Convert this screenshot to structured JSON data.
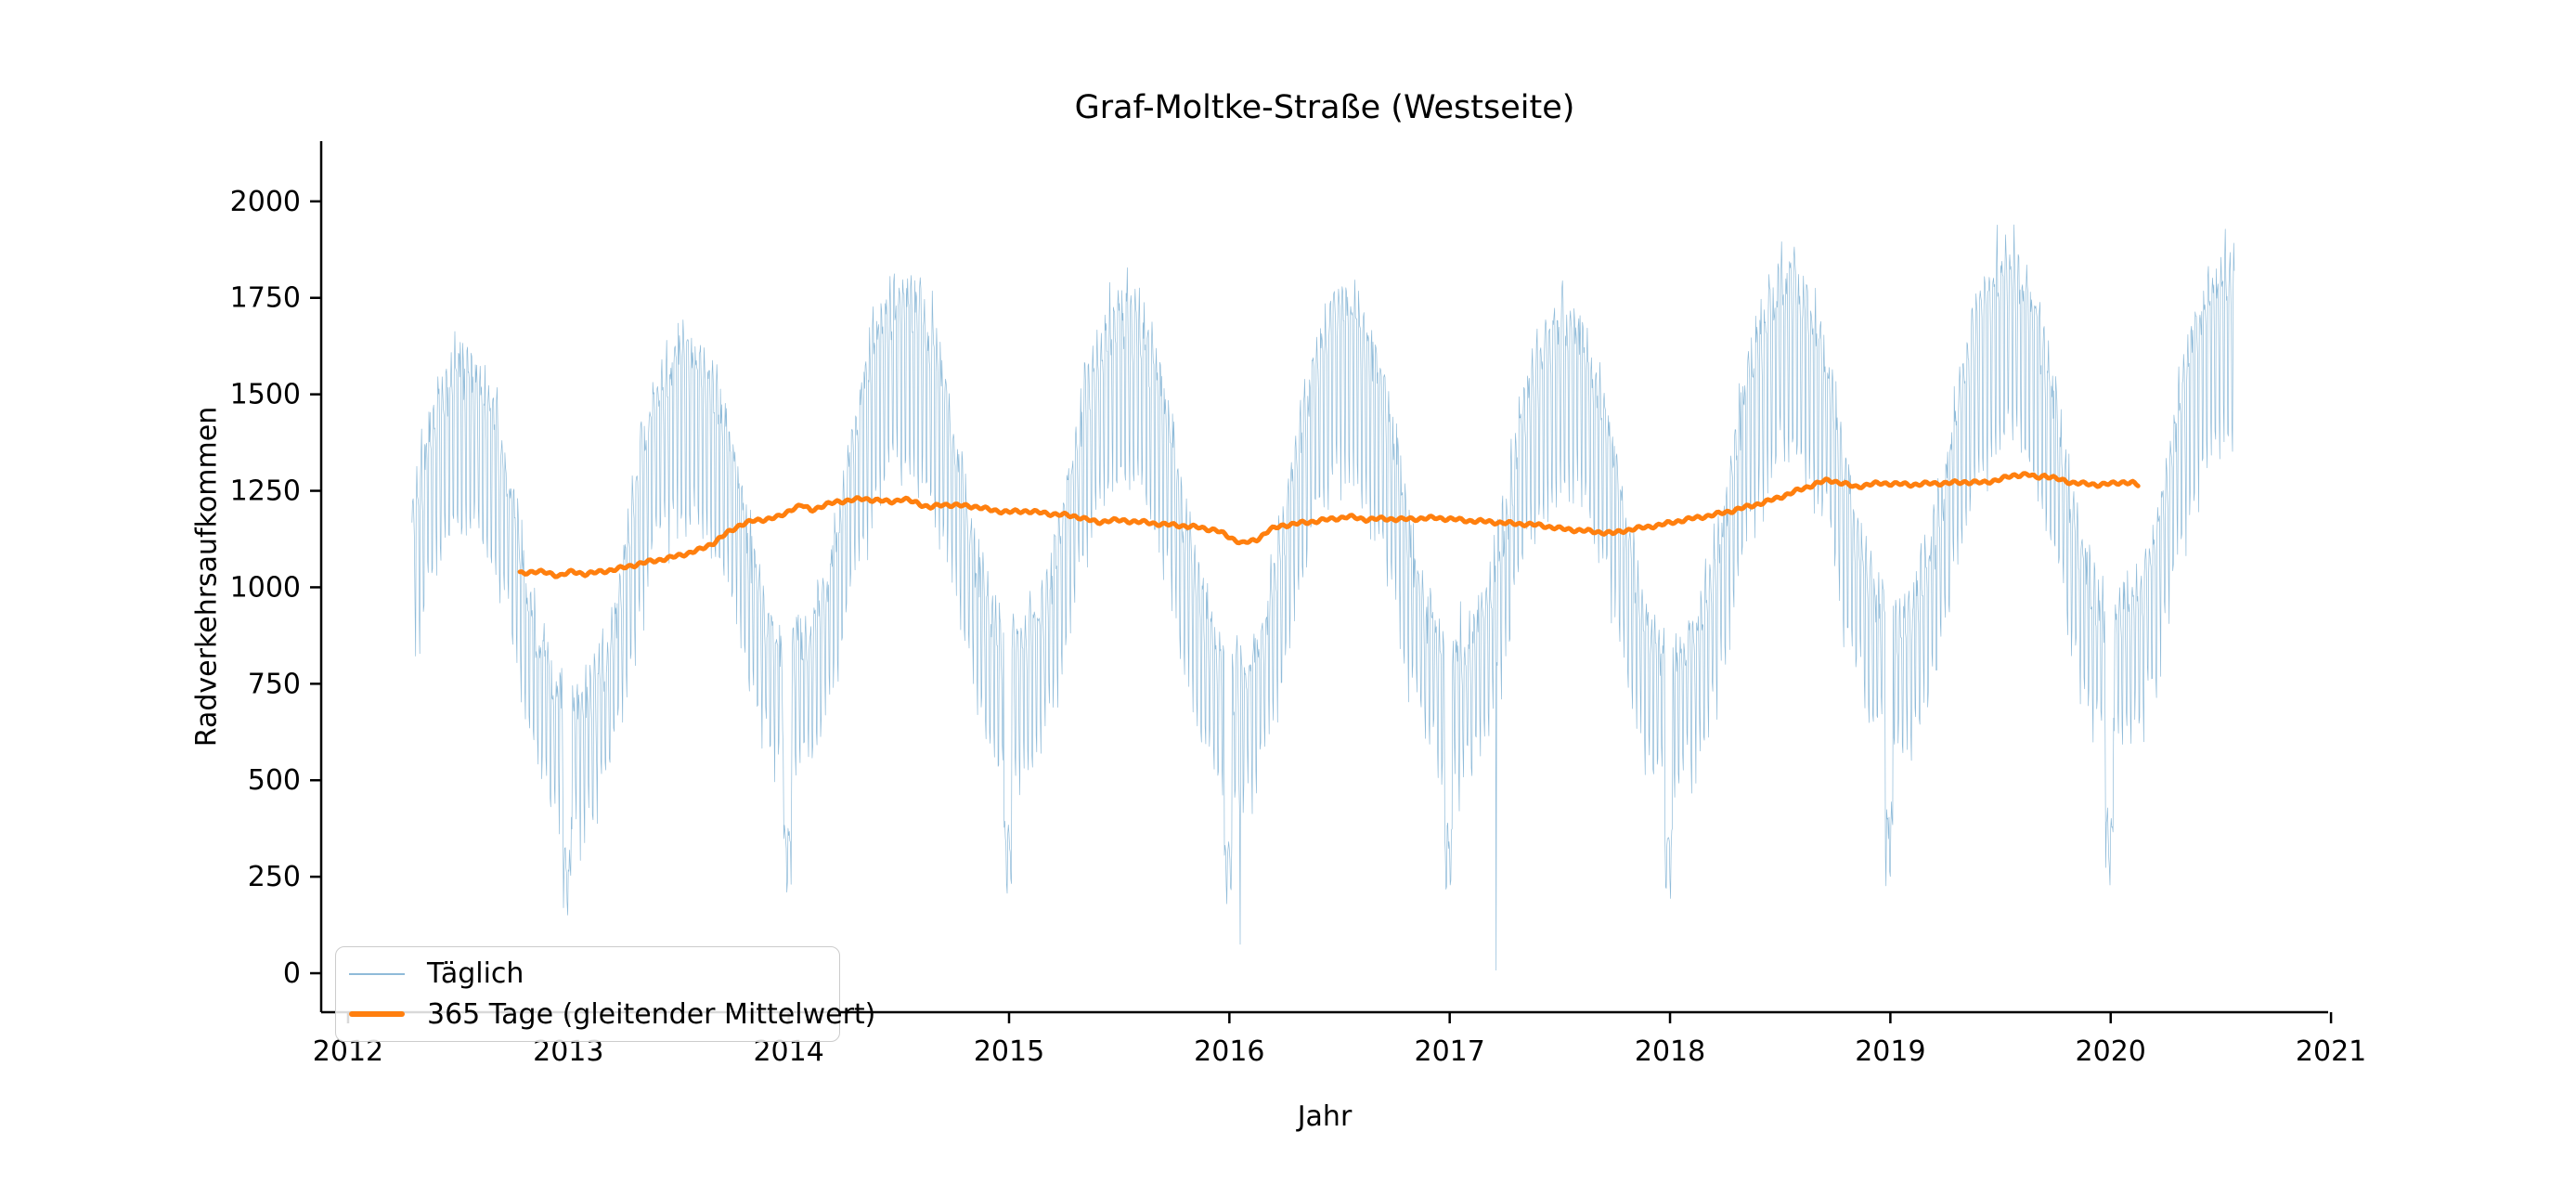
{
  "figure": {
    "title": "Graf-Moltke-Straße (Westseite)"
  },
  "legend": {
    "items": [
      {
        "label": "Täglich",
        "color": "#1f77b4",
        "style": "thin"
      },
      {
        "label": "365 Tage (gleitender Mittelwert)",
        "color": "#ff7f0e",
        "style": "thick"
      }
    ]
  },
  "chart_data": {
    "type": "line",
    "title": "Graf-Moltke-Straße (Westseite)",
    "xlabel": "Jahr",
    "ylabel": "Radverkehrsaufkommen",
    "xlim": [
      2011.878,
      2020.987
    ],
    "ylim": [
      -101,
      2156
    ],
    "xticks": [
      2012,
      2013,
      2014,
      2015,
      2016,
      2017,
      2018,
      2019,
      2020,
      2021
    ],
    "yticks": [
      0,
      250,
      500,
      750,
      1000,
      1250,
      1500,
      1750,
      2000
    ],
    "grid": false,
    "legend_position": "lower left",
    "axis_color": "#000000",
    "series": [
      {
        "name": "Täglich",
        "kind": "daily",
        "color": "#1f77b4",
        "opacity": 0.5,
        "width": 0.7,
        "spec": {
          "start": 2012.29,
          "end": 2020.56,
          "seed": 1337,
          "seasonal_amplitude": 430,
          "seasonal_phase": 0.025,
          "seasonal_shape_power": 0.85,
          "week_pattern": [
            110,
            135,
            120,
            90,
            40,
            -250,
            -300
          ],
          "week_level_scale": [
            0.55,
            0.45,
            1400
          ],
          "noise_sd": 120,
          "holiday_start_frac": 0.975,
          "holiday_end_frac": 0.012,
          "holiday_factor": 0.42,
          "clip_min": 8,
          "clip_max": 2045,
          "outliers": [
            [
              2016.05,
              75
            ],
            [
              2017.21,
              8
            ],
            [
              2019.99,
              300
            ]
          ]
        }
      },
      {
        "name": "365 Tage (gleitender Mittelwert)",
        "kind": "rolling_mean",
        "color": "#ff7f0e",
        "opacity": 1,
        "width": 5,
        "wiggle": [
          3.5,
          140,
          2.0,
          53
        ],
        "points": [
          [
            2012.78,
            1036
          ],
          [
            2012.84,
            1041
          ],
          [
            2012.9,
            1038
          ],
          [
            2012.96,
            1030
          ],
          [
            2013.02,
            1041
          ],
          [
            2013.08,
            1034
          ],
          [
            2013.14,
            1040
          ],
          [
            2013.22,
            1047
          ],
          [
            2013.3,
            1058
          ],
          [
            2013.38,
            1068
          ],
          [
            2013.46,
            1076
          ],
          [
            2013.54,
            1088
          ],
          [
            2013.6,
            1098
          ],
          [
            2013.66,
            1116
          ],
          [
            2013.72,
            1140
          ],
          [
            2013.78,
            1162
          ],
          [
            2013.84,
            1172
          ],
          [
            2013.9,
            1177
          ],
          [
            2013.96,
            1183
          ],
          [
            2014.02,
            1205
          ],
          [
            2014.06,
            1212
          ],
          [
            2014.1,
            1200
          ],
          [
            2014.16,
            1212
          ],
          [
            2014.22,
            1222
          ],
          [
            2014.28,
            1225
          ],
          [
            2014.34,
            1230
          ],
          [
            2014.4,
            1225
          ],
          [
            2014.46,
            1222
          ],
          [
            2014.52,
            1228
          ],
          [
            2014.58,
            1220
          ],
          [
            2014.64,
            1206
          ],
          [
            2014.7,
            1215
          ],
          [
            2014.76,
            1212
          ],
          [
            2014.84,
            1210
          ],
          [
            2014.92,
            1200
          ],
          [
            2015.0,
            1195
          ],
          [
            2015.08,
            1198
          ],
          [
            2015.16,
            1192
          ],
          [
            2015.24,
            1188
          ],
          [
            2015.32,
            1182
          ],
          [
            2015.4,
            1168
          ],
          [
            2015.46,
            1174
          ],
          [
            2015.54,
            1172
          ],
          [
            2015.62,
            1168
          ],
          [
            2015.7,
            1163
          ],
          [
            2015.78,
            1160
          ],
          [
            2015.86,
            1155
          ],
          [
            2015.94,
            1148
          ],
          [
            2016.0,
            1130
          ],
          [
            2016.06,
            1114
          ],
          [
            2016.12,
            1122
          ],
          [
            2016.18,
            1148
          ],
          [
            2016.24,
            1160
          ],
          [
            2016.32,
            1166
          ],
          [
            2016.4,
            1172
          ],
          [
            2016.48,
            1178
          ],
          [
            2016.54,
            1183
          ],
          [
            2016.62,
            1176
          ],
          [
            2016.7,
            1178
          ],
          [
            2016.78,
            1176
          ],
          [
            2016.86,
            1178
          ],
          [
            2016.94,
            1180
          ],
          [
            2017.02,
            1176
          ],
          [
            2017.1,
            1172
          ],
          [
            2017.18,
            1170
          ],
          [
            2017.26,
            1166
          ],
          [
            2017.34,
            1164
          ],
          [
            2017.42,
            1160
          ],
          [
            2017.5,
            1152
          ],
          [
            2017.58,
            1148
          ],
          [
            2017.66,
            1144
          ],
          [
            2017.74,
            1140
          ],
          [
            2017.8,
            1148
          ],
          [
            2017.88,
            1155
          ],
          [
            2017.96,
            1162
          ],
          [
            2018.04,
            1172
          ],
          [
            2018.12,
            1180
          ],
          [
            2018.2,
            1188
          ],
          [
            2018.28,
            1198
          ],
          [
            2018.36,
            1210
          ],
          [
            2018.44,
            1222
          ],
          [
            2018.52,
            1238
          ],
          [
            2018.6,
            1255
          ],
          [
            2018.66,
            1268
          ],
          [
            2018.72,
            1278
          ],
          [
            2018.78,
            1270
          ],
          [
            2018.84,
            1260
          ],
          [
            2018.9,
            1266
          ],
          [
            2018.96,
            1270
          ],
          [
            2019.02,
            1268
          ],
          [
            2019.1,
            1266
          ],
          [
            2019.18,
            1269
          ],
          [
            2019.26,
            1270
          ],
          [
            2019.34,
            1273
          ],
          [
            2019.42,
            1271
          ],
          [
            2019.5,
            1280
          ],
          [
            2019.56,
            1290
          ],
          [
            2019.62,
            1293
          ],
          [
            2019.66,
            1284
          ],
          [
            2019.7,
            1290
          ],
          [
            2019.76,
            1280
          ],
          [
            2019.82,
            1272
          ],
          [
            2019.88,
            1268
          ],
          [
            2019.94,
            1266
          ],
          [
            2020.0,
            1268
          ],
          [
            2020.06,
            1273
          ],
          [
            2020.1,
            1270
          ],
          [
            2020.13,
            1263
          ]
        ]
      }
    ]
  }
}
